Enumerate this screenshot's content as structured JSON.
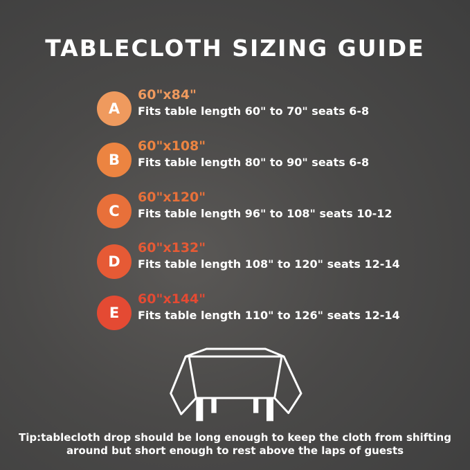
{
  "title": "TABLECLOTH SIZING GUIDE",
  "items": [
    {
      "letter": "A",
      "size": "60\"x84\"",
      "desc": "Fits table length 60\" to 70\" seats 6-8",
      "color": "#ef9a5e"
    },
    {
      "letter": "B",
      "size": "60\"x108\"",
      "desc": "Fits table length 80\" to 90\" seats 6-8",
      "color": "#ec8441"
    },
    {
      "letter": "C",
      "size": "60\"x120\"",
      "desc": "Fits table length 96\" to 108\" seats 10-12",
      "color": "#e8703a"
    },
    {
      "letter": "D",
      "size": "60\"x132\"",
      "desc": "Fits table length 108\" to 120\" seats 12-14",
      "color": "#e65a35"
    },
    {
      "letter": "E",
      "size": "60\"x144\"",
      "desc": "Fits table length 110\" to 126\" seats 12-14",
      "color": "#e44a33"
    }
  ],
  "drawing_icon": "tablecloth-on-table-icon",
  "tip": [
    "Tip:tablecloth drop should be long enough to keep the cloth from shifting",
    "around but short enough to rest above the laps of guests"
  ]
}
